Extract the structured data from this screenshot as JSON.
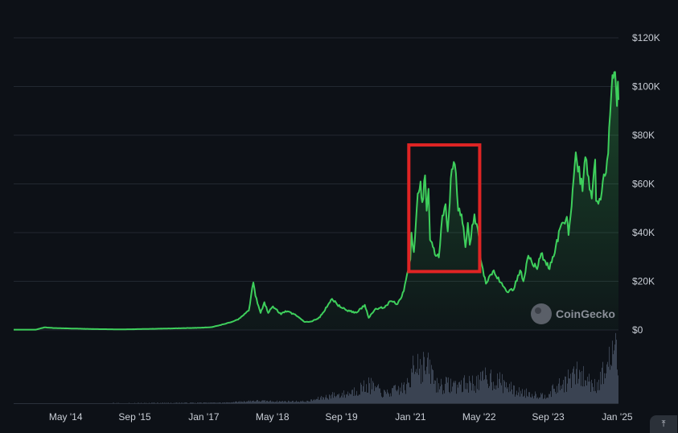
{
  "chart_data": {
    "type": "line",
    "title": "",
    "xlabel": "",
    "ylabel": "",
    "ylim": [
      0,
      120000
    ],
    "x_range": [
      "2013-04-28",
      "2025-01-10"
    ],
    "y_tick_values": [
      0,
      20000,
      40000,
      60000,
      80000,
      100000,
      120000
    ],
    "y_tick_labels": [
      "$0",
      "$20K",
      "$40K",
      "$60K",
      "$80K",
      "$100K",
      "$120K"
    ],
    "x_ticks": [
      {
        "label": "May '14",
        "date": "2014-05-01"
      },
      {
        "label": "Sep '15",
        "date": "2015-09-01"
      },
      {
        "label": "Jan '17",
        "date": "2017-01-01"
      },
      {
        "label": "May '18",
        "date": "2018-05-01"
      },
      {
        "label": "Sep '19",
        "date": "2019-09-01"
      },
      {
        "label": "Jan '21",
        "date": "2021-01-01"
      },
      {
        "label": "May '22",
        "date": "2022-05-01"
      },
      {
        "label": "Sep '23",
        "date": "2023-09-01"
      },
      {
        "label": "Jan '25",
        "date": "2025-01-01"
      }
    ],
    "grid": true,
    "series": [
      {
        "color": "#3ecf5c",
        "points": [
          [
            "2013-04-28",
            130
          ],
          [
            "2013-10-01",
            140
          ],
          [
            "2013-12-04",
            1100
          ],
          [
            "2014-02-01",
            800
          ],
          [
            "2014-06-01",
            620
          ],
          [
            "2014-12-01",
            350
          ],
          [
            "2015-06-01",
            240
          ],
          [
            "2015-12-01",
            420
          ],
          [
            "2016-06-01",
            650
          ],
          [
            "2016-12-01",
            900
          ],
          [
            "2017-03-01",
            1200
          ],
          [
            "2017-06-01",
            2500
          ],
          [
            "2017-09-01",
            4300
          ],
          [
            "2017-11-15",
            8000
          ],
          [
            "2017-12-17",
            19500
          ],
          [
            "2018-01-01",
            14000
          ],
          [
            "2018-02-06",
            7000
          ],
          [
            "2018-03-05",
            11400
          ],
          [
            "2018-04-01",
            7000
          ],
          [
            "2018-05-05",
            9700
          ],
          [
            "2018-07-01",
            6400
          ],
          [
            "2018-08-01",
            7800
          ],
          [
            "2018-10-01",
            6500
          ],
          [
            "2018-12-15",
            3300
          ],
          [
            "2019-02-01",
            3500
          ],
          [
            "2019-04-01",
            5200
          ],
          [
            "2019-06-26",
            12800
          ],
          [
            "2019-08-01",
            10500
          ],
          [
            "2019-10-01",
            8200
          ],
          [
            "2019-12-15",
            7100
          ],
          [
            "2020-02-13",
            10300
          ],
          [
            "2020-03-12",
            5000
          ],
          [
            "2020-05-01",
            8800
          ],
          [
            "2020-07-01",
            9200
          ],
          [
            "2020-08-15",
            11800
          ],
          [
            "2020-10-01",
            10600
          ],
          [
            "2020-11-15",
            16000
          ],
          [
            "2020-12-31",
            29000
          ],
          [
            "2021-01-08",
            40000
          ],
          [
            "2021-01-25",
            32000
          ],
          [
            "2021-02-21",
            56000
          ],
          [
            "2021-03-13",
            61000
          ],
          [
            "2021-03-25",
            52500
          ],
          [
            "2021-04-14",
            63500
          ],
          [
            "2021-04-25",
            49000
          ],
          [
            "2021-05-08",
            58000
          ],
          [
            "2021-05-19",
            37000
          ],
          [
            "2021-06-01",
            36000
          ],
          [
            "2021-06-22",
            31000
          ],
          [
            "2021-07-20",
            29800
          ],
          [
            "2021-08-14",
            47000
          ],
          [
            "2021-09-06",
            51700
          ],
          [
            "2021-09-21",
            40500
          ],
          [
            "2021-10-20",
            66000
          ],
          [
            "2021-11-10",
            68000
          ],
          [
            "2021-12-04",
            49000
          ],
          [
            "2021-12-28",
            47500
          ],
          [
            "2022-01-24",
            34000
          ],
          [
            "2022-02-10",
            44000
          ],
          [
            "2022-02-24",
            35000
          ],
          [
            "2022-03-29",
            47500
          ],
          [
            "2022-04-30",
            38000
          ],
          [
            "2022-05-12",
            28800
          ],
          [
            "2022-06-18",
            19000
          ],
          [
            "2022-08-13",
            24500
          ],
          [
            "2022-09-30",
            19500
          ],
          [
            "2022-11-09",
            16000
          ],
          [
            "2022-12-30",
            16500
          ],
          [
            "2023-02-15",
            24500
          ],
          [
            "2023-03-10",
            20000
          ],
          [
            "2023-04-14",
            30500
          ],
          [
            "2023-06-15",
            25000
          ],
          [
            "2023-07-13",
            31400
          ],
          [
            "2023-09-11",
            25000
          ],
          [
            "2023-10-25",
            34500
          ],
          [
            "2023-12-08",
            44000
          ],
          [
            "2024-01-11",
            46500
          ],
          [
            "2024-01-23",
            39000
          ],
          [
            "2024-02-28",
            62000
          ],
          [
            "2024-03-14",
            73000
          ],
          [
            "2024-05-01",
            57000
          ],
          [
            "2024-05-21",
            71000
          ],
          [
            "2024-07-05",
            54000
          ],
          [
            "2024-07-29",
            70000
          ],
          [
            "2024-08-05",
            53000
          ],
          [
            "2024-09-06",
            53500
          ],
          [
            "2024-10-29",
            72500
          ],
          [
            "2024-11-12",
            88500
          ],
          [
            "2024-11-22",
            99000
          ],
          [
            "2024-12-05",
            103500
          ],
          [
            "2024-12-17",
            106000
          ],
          [
            "2024-12-30",
            92000
          ],
          [
            "2025-01-06",
            102000
          ],
          [
            "2025-01-10",
            94500
          ]
        ]
      }
    ],
    "volume": {
      "color": "#3a4352",
      "points": [
        [
          "2013-04-28",
          0.0
        ],
        [
          "2017-06-01",
          0.01
        ],
        [
          "2017-12-17",
          0.04
        ],
        [
          "2018-06-01",
          0.03
        ],
        [
          "2019-01-01",
          0.03
        ],
        [
          "2019-06-26",
          0.13
        ],
        [
          "2019-10-01",
          0.15
        ],
        [
          "2020-03-12",
          0.3
        ],
        [
          "2020-07-01",
          0.15
        ],
        [
          "2020-12-31",
          0.3
        ],
        [
          "2021-01-10",
          0.85
        ],
        [
          "2021-02-21",
          0.65
        ],
        [
          "2021-05-19",
          0.55
        ],
        [
          "2021-07-01",
          0.3
        ],
        [
          "2021-12-01",
          0.3
        ],
        [
          "2022-05-12",
          0.35
        ],
        [
          "2022-06-18",
          0.45
        ],
        [
          "2022-11-09",
          0.3
        ],
        [
          "2023-01-01",
          0.2
        ],
        [
          "2023-08-01",
          0.12
        ],
        [
          "2023-12-01",
          0.3
        ],
        [
          "2024-03-14",
          0.48
        ],
        [
          "2024-08-05",
          0.3
        ],
        [
          "2024-11-12",
          0.7
        ],
        [
          "2024-12-05",
          1.0
        ],
        [
          "2025-01-10",
          0.5
        ]
      ]
    },
    "highlight_box": {
      "color": "#e02424",
      "from_date": "2020-12-20",
      "to_date": "2022-05-05",
      "y_from": 24000,
      "y_to": 76000
    }
  },
  "watermark": {
    "text": "CoinGecko",
    "icon": "coingecko-logo"
  },
  "scroll_top_button": {
    "icon": "arrow-to-top-icon",
    "glyph": "⤒"
  }
}
